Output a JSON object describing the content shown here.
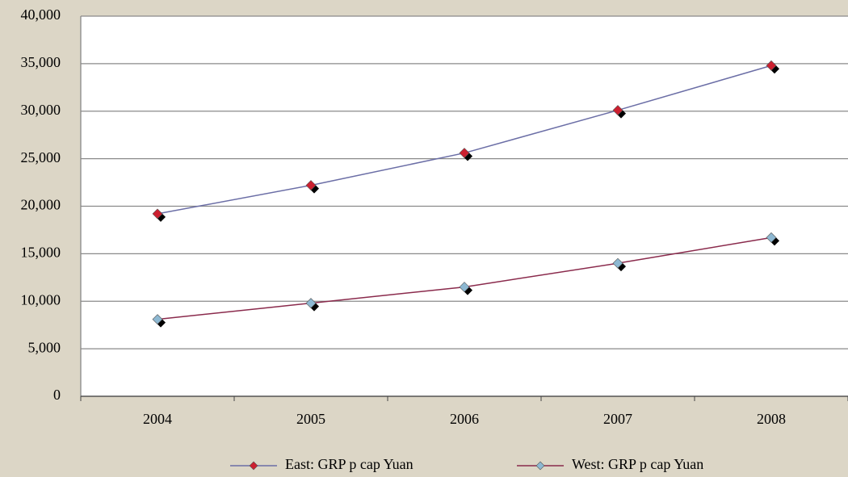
{
  "chart_data": {
    "type": "line",
    "categories": [
      "2004",
      "2005",
      "2006",
      "2007",
      "2008"
    ],
    "series": [
      {
        "name": "East: GRP p cap Yuan",
        "color": "#6b6ea6",
        "marker_color": "#cc2030",
        "values": [
          19200,
          22200,
          25600,
          30100,
          34800
        ]
      },
      {
        "name": "West: GRP p cap Yuan",
        "color": "#8a2a4c",
        "marker_color": "#8db8d2",
        "values": [
          8100,
          9800,
          11500,
          14000,
          16700
        ]
      }
    ],
    "ylim": [
      0,
      40000
    ],
    "yticks": [
      0,
      {
        "value": 5000,
        "label": "5,000"
      },
      {
        "value": 10000,
        "label": "10,000"
      },
      {
        "value": 15000,
        "label": "15,000"
      },
      {
        "value": 20000,
        "label": "20,000"
      },
      {
        "value": 25000,
        "label": "25,000"
      },
      {
        "value": 30000,
        "label": "30,000"
      },
      {
        "value": 35000,
        "label": "35,000"
      },
      {
        "value": 40000,
        "label": "40,000"
      }
    ],
    "grid": true,
    "legend": "bottom"
  }
}
